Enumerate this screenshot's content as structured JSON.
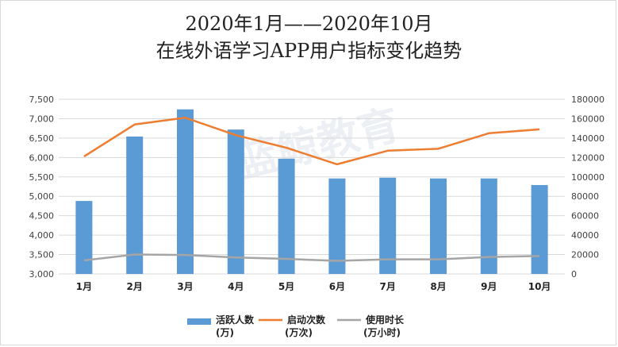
{
  "title": {
    "line1": "2020年1月——2020年10月",
    "line2": "在线外语学习APP用户指标变化趋势"
  },
  "watermark": "蓝鲸教育",
  "colors": {
    "bar": "#5b9bd5",
    "line1": "#ed7d31",
    "line2": "#a5a5a5",
    "grid": "#d9d9d9"
  },
  "chart_data": {
    "type": "bar",
    "categories": [
      "1月",
      "2月",
      "3月",
      "4月",
      "5月",
      "6月",
      "7月",
      "8月",
      "9月",
      "10月"
    ],
    "series": [
      {
        "name": "活跃人数",
        "unit": "(万)",
        "type": "bar",
        "axis": "left",
        "values": [
          4880,
          6540,
          7240,
          6720,
          5970,
          5460,
          5480,
          5460,
          5460,
          5290
        ]
      },
      {
        "name": "启动次数",
        "unit": "(万次)",
        "type": "line",
        "axis": "right",
        "values": [
          121000,
          154000,
          161000,
          143000,
          130000,
          113000,
          127000,
          129000,
          145000,
          149000
        ]
      },
      {
        "name": "使用时长",
        "unit": "(万小时)",
        "type": "line",
        "axis": "right",
        "values": [
          14000,
          20000,
          19500,
          17000,
          15500,
          13500,
          15000,
          15000,
          17500,
          18500
        ]
      }
    ],
    "left_axis": {
      "ylim": [
        3000,
        7500
      ],
      "ticks": [
        3000,
        3500,
        4000,
        4500,
        5000,
        5500,
        6000,
        6500,
        7000,
        7500
      ],
      "tick_labels": [
        "3,000",
        "3,500",
        "4,000",
        "4,500",
        "5,000",
        "5,500",
        "6,000",
        "6,500",
        "7,000",
        "7,500"
      ]
    },
    "right_axis": {
      "ylim": [
        0,
        180000
      ],
      "ticks": [
        0,
        20000,
        40000,
        60000,
        80000,
        100000,
        120000,
        140000,
        160000,
        180000
      ],
      "tick_labels": [
        "0",
        "20000",
        "40000",
        "60000",
        "80000",
        "100000",
        "120000",
        "140000",
        "160000",
        "180000"
      ]
    },
    "grid": true,
    "legend_position": "bottom"
  }
}
